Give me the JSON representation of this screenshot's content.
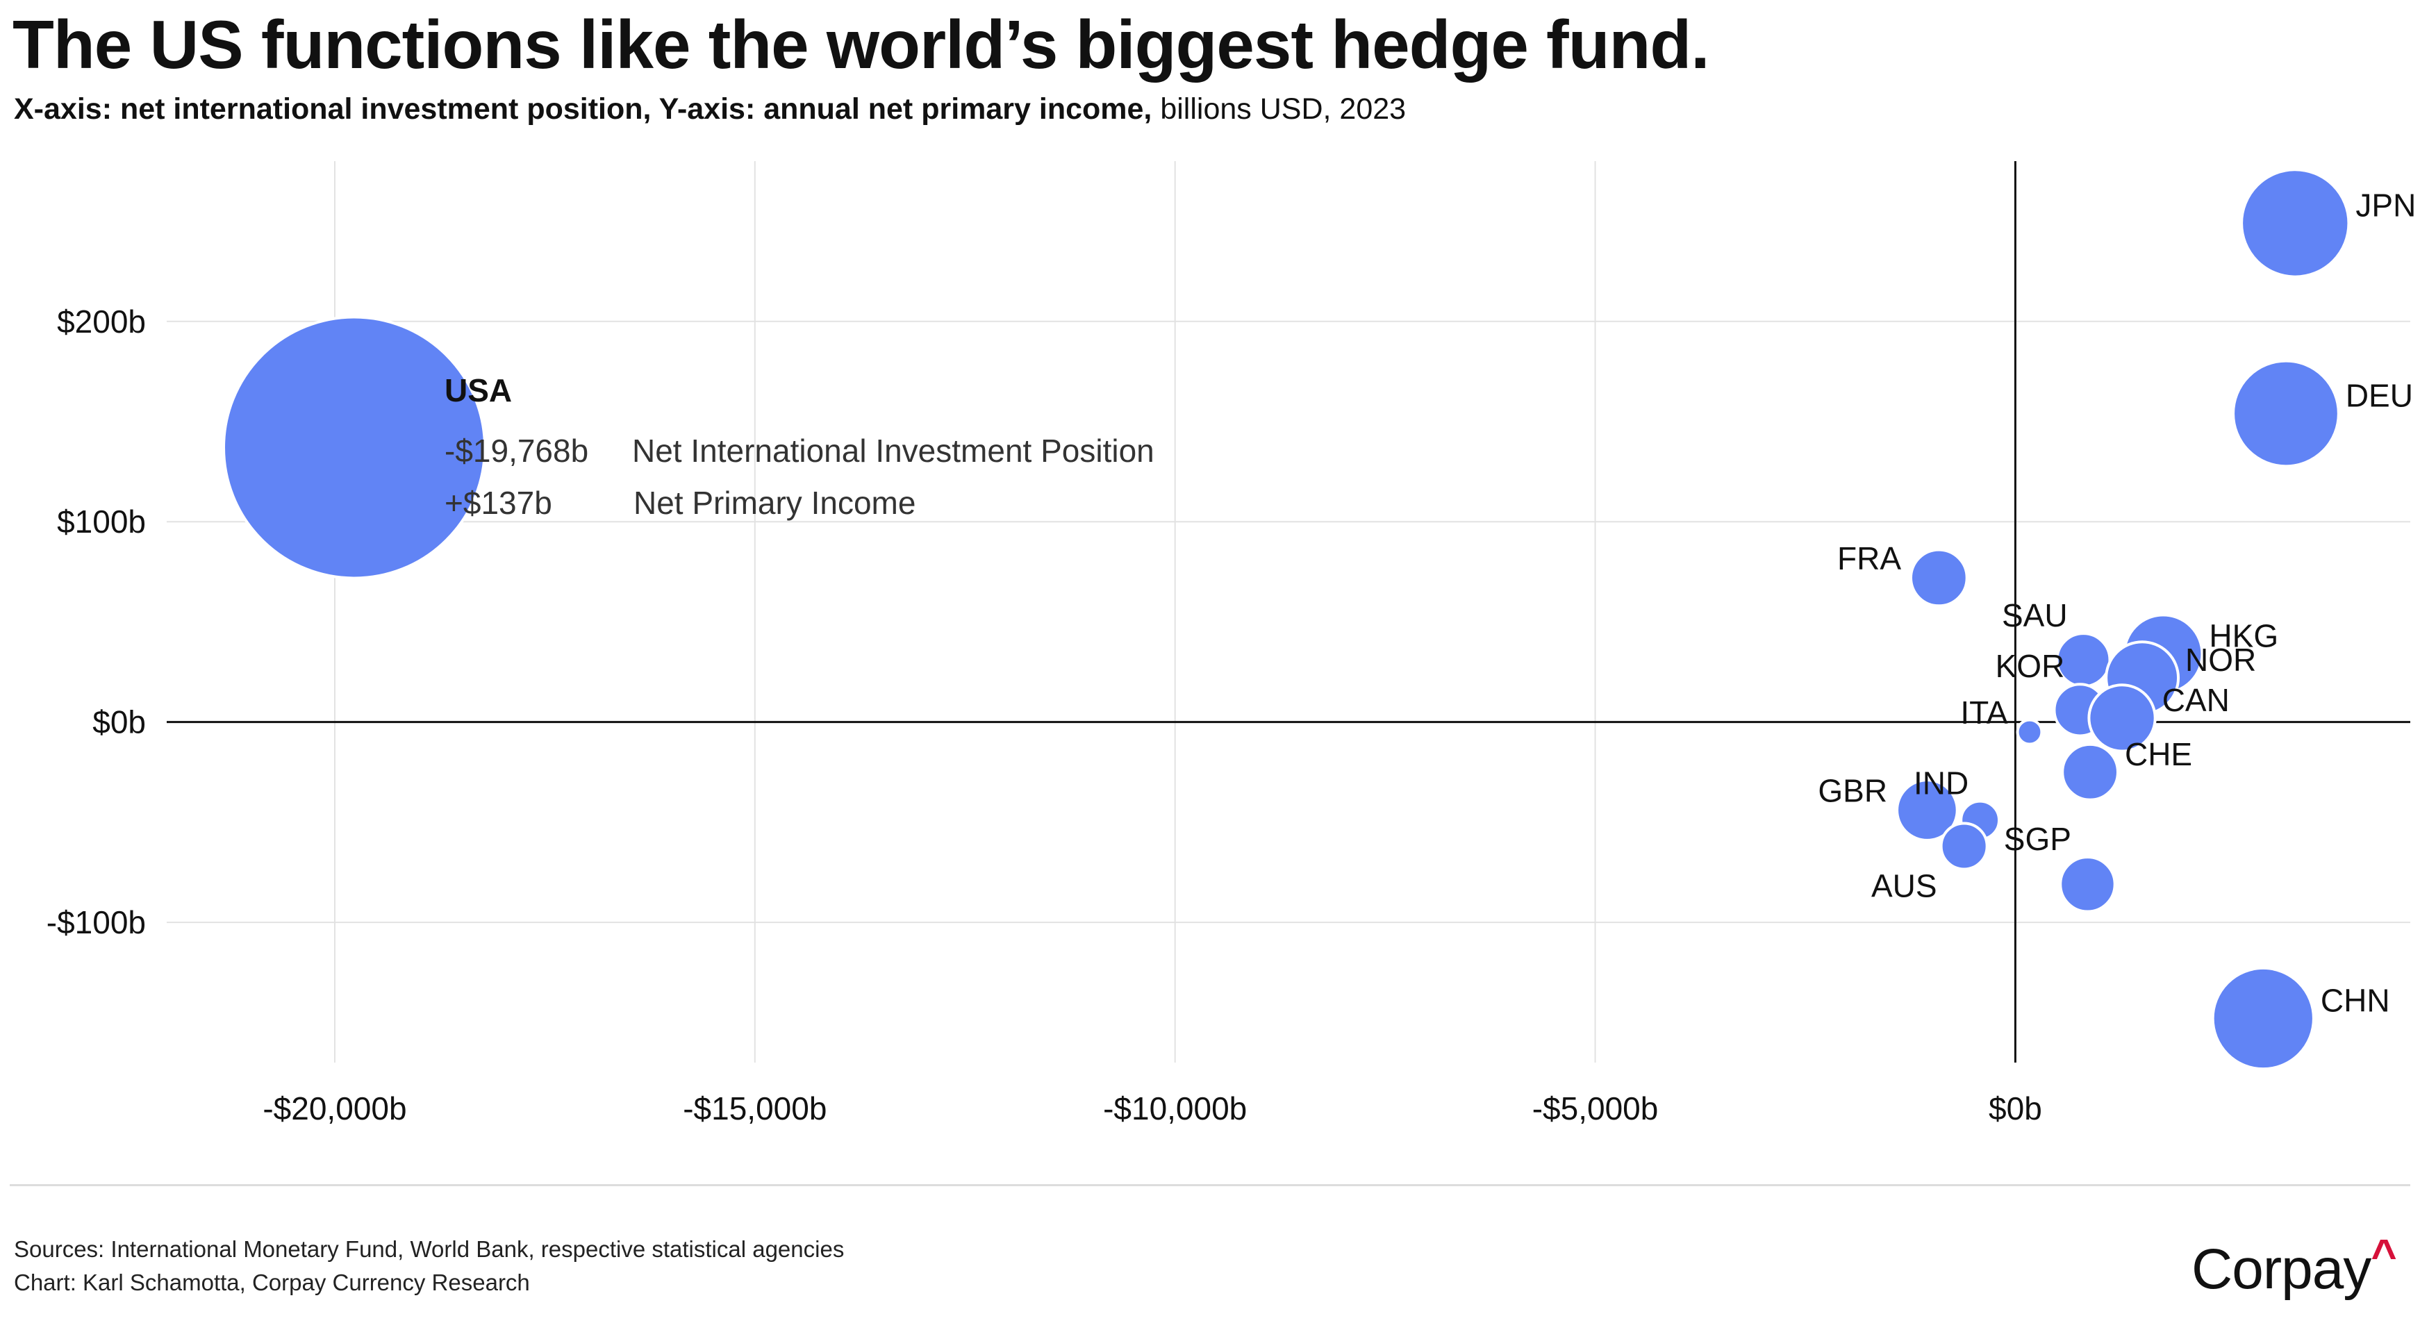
{
  "title": "The US functions like the world’s biggest hedge fund.",
  "subtitle": {
    "bold_part": "X-axis: net international investment position, Y-axis: annual net primary income,",
    "regular_part": " billions USD, 2023"
  },
  "chart_data": {
    "type": "scatter",
    "bubble": true,
    "title": "The US functions like the world’s biggest hedge fund.",
    "xlabel": "net international investment position",
    "ylabel": "annual net primary income",
    "units": "billions USD, 2023",
    "xlim": [
      -22000,
      4700
    ],
    "ylim": [
      -170,
      280
    ],
    "x_ticks": [
      {
        "value": -20000,
        "label": "-$20,000b"
      },
      {
        "value": -15000,
        "label": "-$15,000b"
      },
      {
        "value": -10000,
        "label": "-$10,000b"
      },
      {
        "value": -5000,
        "label": "-$5,000b"
      },
      {
        "value": 0,
        "label": "$0b"
      }
    ],
    "y_ticks": [
      {
        "value": 200,
        "label": "$200b"
      },
      {
        "value": 100,
        "label": "$100b"
      },
      {
        "value": 0,
        "label": "$0b"
      },
      {
        "value": -100,
        "label": "-$100b"
      }
    ],
    "grid": true,
    "bubble_color": "#6184f5",
    "points": [
      {
        "label": "USA",
        "x": -19768,
        "y": 137,
        "size": 19768,
        "label_pos": "none"
      },
      {
        "label": "JPN",
        "x": 3330,
        "y": 249,
        "size": 3330,
        "label_pos": "right"
      },
      {
        "label": "DEU",
        "x": 3220,
        "y": 154,
        "size": 3220,
        "label_pos": "right"
      },
      {
        "label": "FRA",
        "x": -910,
        "y": 72,
        "size": 910,
        "label_pos": "left"
      },
      {
        "label": "HKG",
        "x": 1760,
        "y": 34,
        "size": 1760,
        "label_pos": "right"
      },
      {
        "label": "SAU",
        "x": 810,
        "y": 31,
        "size": 810,
        "label_pos": "upleft"
      },
      {
        "label": "NOR",
        "x": 1510,
        "y": 22,
        "size": 1510,
        "label_pos": "right"
      },
      {
        "label": "KOR",
        "x": 770,
        "y": 6,
        "size": 770,
        "label_pos": "upleft"
      },
      {
        "label": "CAN",
        "x": 1270,
        "y": 2,
        "size": 1270,
        "label_pos": "right"
      },
      {
        "label": "ITA",
        "x": 170,
        "y": -5,
        "size": 170,
        "label_pos": "left"
      },
      {
        "label": "CHE",
        "x": 890,
        "y": -25,
        "size": 890,
        "label_pos": "right"
      },
      {
        "label": "IND",
        "x": -420,
        "y": -49,
        "size": 420,
        "label_pos": "upleft"
      },
      {
        "label": "GBR",
        "x": -1050,
        "y": -44,
        "size": 1050,
        "label_pos": "left"
      },
      {
        "label": "AUS",
        "x": -610,
        "y": -62,
        "size": 610,
        "label_pos": "downleft"
      },
      {
        "label": "SGP",
        "x": 860,
        "y": -81,
        "size": 860,
        "label_pos": "upleft"
      },
      {
        "label": "CHN",
        "x": 2950,
        "y": -148,
        "size": 2950,
        "label_pos": "right"
      }
    ],
    "annotation": {
      "country": "USA",
      "nip_value": "-$19,768b",
      "nip_label": "Net International Investment Position",
      "income_value": "+$137b",
      "income_label": "Net Primary Income"
    }
  },
  "footer": {
    "sources": "Sources: International Monetary Fund, World Bank, respective statistical agencies",
    "credit": "Chart: Karl Schamotta, Corpay Currency Research",
    "brand": "Corpay",
    "brand_mark": "^"
  }
}
